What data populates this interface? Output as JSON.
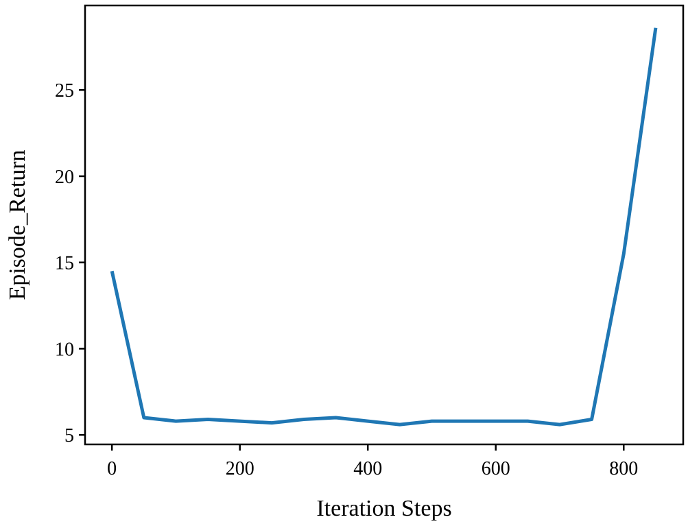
{
  "chart_data": {
    "type": "line",
    "title": "",
    "xlabel": "Iteration Steps",
    "ylabel": "Episode_Return",
    "xlim": [
      -42,
      893
    ],
    "ylim": [
      4.45,
      29.9
    ],
    "x_ticks": [
      0,
      200,
      400,
      600,
      800
    ],
    "y_ticks": [
      5,
      10,
      15,
      20,
      25
    ],
    "grid": false,
    "series": [
      {
        "name": "Episode_Return",
        "color": "#1f77b4",
        "x": [
          0,
          50,
          100,
          150,
          200,
          250,
          300,
          350,
          400,
          450,
          500,
          550,
          600,
          650,
          700,
          750,
          800,
          850
        ],
        "y": [
          14.5,
          6.0,
          5.8,
          5.9,
          5.8,
          5.7,
          5.9,
          6.0,
          5.8,
          5.6,
          5.8,
          5.8,
          5.8,
          5.8,
          5.6,
          5.9,
          15.5,
          28.6
        ]
      }
    ]
  }
}
